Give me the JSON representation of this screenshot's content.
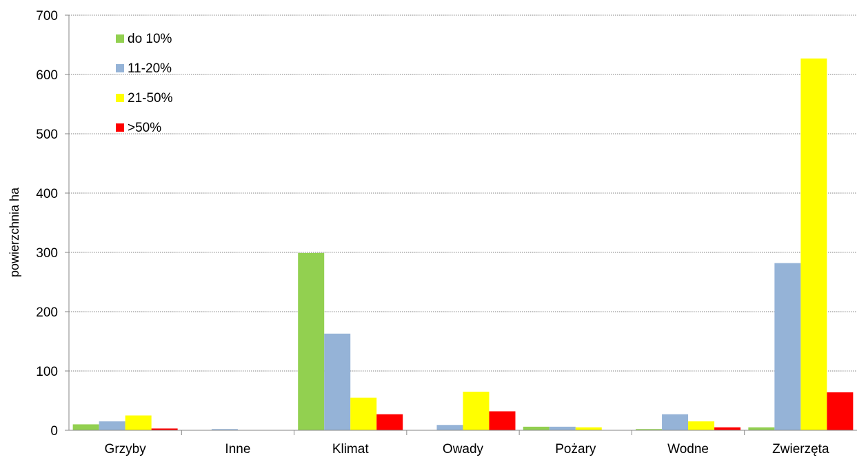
{
  "chart_data": {
    "type": "bar",
    "title": "",
    "xlabel": "",
    "ylabel": "powierzchnia ha",
    "ylim": [
      0,
      700
    ],
    "yticks": [
      0,
      100,
      200,
      300,
      400,
      500,
      600,
      700
    ],
    "grid": true,
    "legend_position": "top-left",
    "categories": [
      "Grzyby",
      "Inne",
      "Klimat",
      "Owady",
      "Pożary",
      "Wodne",
      "Zwierzęta"
    ],
    "series": [
      {
        "name": "do 10%",
        "color": "#92d050",
        "values": [
          10,
          0,
          299,
          0,
          6,
          2,
          5
        ]
      },
      {
        "name": "11-20%",
        "color": "#95b3d7",
        "values": [
          15,
          2,
          163,
          9,
          6,
          27,
          282
        ]
      },
      {
        "name": "21-50%",
        "color": "#ffff00",
        "values": [
          25,
          0,
          55,
          65,
          5,
          15,
          627
        ]
      },
      {
        "name": ">50%",
        "color": "#ff0000",
        "values": [
          3,
          0,
          27,
          32,
          0,
          5,
          64
        ]
      }
    ]
  }
}
